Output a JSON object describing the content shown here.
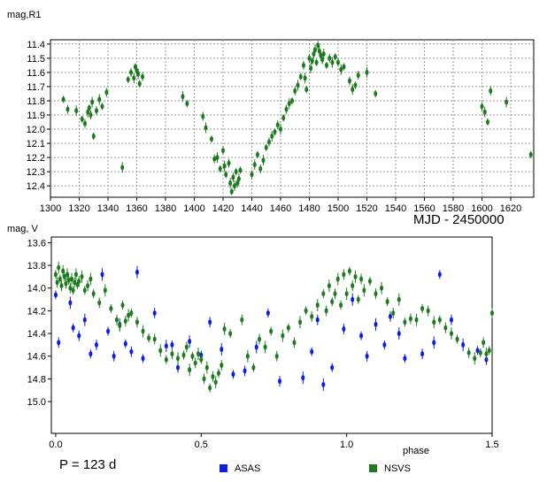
{
  "chart_data": [
    {
      "type": "scatter",
      "ylabel": "mag,R1",
      "xlabel": "MJD - 2450000",
      "x_ticks": [
        1300,
        1320,
        1340,
        1360,
        1380,
        1400,
        1420,
        1440,
        1460,
        1480,
        1500,
        1520,
        1540,
        1560,
        1580,
        1600,
        1620
      ],
      "y_ticks": [
        11.4,
        11.5,
        11.6,
        11.7,
        11.8,
        11.9,
        12.0,
        12.1,
        12.2,
        12.3,
        12.4
      ],
      "xlim": [
        1300,
        1636
      ],
      "ylim": [
        11.37,
        12.48
      ],
      "y_inverted": true,
      "grid": true,
      "series": [
        {
          "name": "NSVS",
          "color": "#1e7a1e",
          "points": [
            [
              1309,
              11.79
            ],
            [
              1312,
              11.86
            ],
            [
              1318,
              11.87
            ],
            [
              1322,
              11.93
            ],
            [
              1324,
              11.96
            ],
            [
              1326,
              11.88
            ],
            [
              1327,
              11.85
            ],
            [
              1328,
              11.9
            ],
            [
              1329,
              11.81
            ],
            [
              1330,
              12.05
            ],
            [
              1332,
              11.87
            ],
            [
              1334,
              11.79
            ],
            [
              1336,
              11.84
            ],
            [
              1339,
              11.74
            ],
            [
              1350,
              12.27
            ],
            [
              1354,
              11.65
            ],
            [
              1356,
              11.6
            ],
            [
              1358,
              11.64
            ],
            [
              1359,
              11.56
            ],
            [
              1360,
              11.59
            ],
            [
              1361,
              11.61
            ],
            [
              1362,
              11.68
            ],
            [
              1364,
              11.63
            ],
            [
              1392,
              11.77
            ],
            [
              1395,
              11.82
            ],
            [
              1406,
              11.91
            ],
            [
              1408,
              11.99
            ],
            [
              1412,
              12.07
            ],
            [
              1414,
              12.21
            ],
            [
              1416,
              12.2
            ],
            [
              1418,
              12.28
            ],
            [
              1420,
              12.15
            ],
            [
              1421,
              12.26
            ],
            [
              1422,
              12.32
            ],
            [
              1424,
              12.24
            ],
            [
              1425,
              12.38
            ],
            [
              1426,
              12.44
            ],
            [
              1427,
              12.34
            ],
            [
              1428,
              12.4
            ],
            [
              1429,
              12.3
            ],
            [
              1430,
              12.38
            ],
            [
              1431,
              12.35
            ],
            [
              1432,
              12.29
            ],
            [
              1440,
              12.32
            ],
            [
              1442,
              12.25
            ],
            [
              1444,
              12.18
            ],
            [
              1446,
              12.28
            ],
            [
              1448,
              12.22
            ],
            [
              1450,
              12.13
            ],
            [
              1452,
              12.09
            ],
            [
              1454,
              12.05
            ],
            [
              1456,
              12.02
            ],
            [
              1458,
              11.97
            ],
            [
              1460,
              12.0
            ],
            [
              1462,
              11.92
            ],
            [
              1464,
              11.86
            ],
            [
              1466,
              11.82
            ],
            [
              1468,
              11.8
            ],
            [
              1470,
              11.73
            ],
            [
              1472,
              11.69
            ],
            [
              1474,
              11.63
            ],
            [
              1476,
              11.55
            ],
            [
              1477,
              11.64
            ],
            [
              1478,
              11.72
            ],
            [
              1480,
              11.5
            ],
            [
              1481,
              11.57
            ],
            [
              1482,
              11.52
            ],
            [
              1483,
              11.47
            ],
            [
              1484,
              11.44
            ],
            [
              1485,
              11.53
            ],
            [
              1486,
              11.41
            ],
            [
              1487,
              11.45
            ],
            [
              1488,
              11.48
            ],
            [
              1489,
              11.51
            ],
            [
              1490,
              11.47
            ],
            [
              1492,
              11.55
            ],
            [
              1494,
              11.5
            ],
            [
              1496,
              11.53
            ],
            [
              1498,
              11.49
            ],
            [
              1500,
              11.53
            ],
            [
              1502,
              11.58
            ],
            [
              1504,
              11.56
            ],
            [
              1508,
              11.66
            ],
            [
              1510,
              11.72
            ],
            [
              1512,
              11.69
            ],
            [
              1514,
              11.62
            ],
            [
              1520,
              11.6
            ],
            [
              1526,
              11.75
            ],
            [
              1600,
              11.84
            ],
            [
              1602,
              11.88
            ],
            [
              1604,
              11.95
            ],
            [
              1606,
              11.73
            ],
            [
              1617,
              11.81
            ],
            [
              1634,
              12.18
            ]
          ]
        }
      ]
    },
    {
      "type": "scatter",
      "ylabel": "mag, V",
      "xlabel": "phase",
      "x_tick_labels": [
        "0.0",
        "0.5",
        "1.0",
        "1.5"
      ],
      "x_ticks": [
        0.0,
        0.5,
        1.0,
        1.5
      ],
      "y_ticks": [
        13.6,
        13.8,
        14.0,
        14.2,
        14.4,
        14.6,
        14.8,
        15.0
      ],
      "xlim": [
        -0.015,
        1.5
      ],
      "ylim": [
        13.55,
        15.28
      ],
      "y_inverted": true,
      "grid": false,
      "annotation": "P = 123 d",
      "legend_position": "bottom",
      "series": [
        {
          "name": "ASAS",
          "color": "#0a1ee6",
          "points": [
            [
              0.0,
              14.06
            ],
            [
              0.01,
              14.48
            ],
            [
              0.05,
              14.13
            ],
            [
              0.06,
              14.35
            ],
            [
              0.08,
              14.42
            ],
            [
              0.1,
              14.28
            ],
            [
              0.12,
              14.58
            ],
            [
              0.14,
              14.5
            ],
            [
              0.16,
              13.88
            ],
            [
              0.18,
              14.38
            ],
            [
              0.2,
              14.6
            ],
            [
              0.22,
              14.32
            ],
            [
              0.24,
              14.49
            ],
            [
              0.26,
              14.56
            ],
            [
              0.28,
              13.86
            ],
            [
              0.3,
              14.62
            ],
            [
              0.34,
              14.22
            ],
            [
              0.38,
              14.51
            ],
            [
              0.4,
              14.5
            ],
            [
              0.42,
              14.7
            ],
            [
              0.46,
              14.47
            ],
            [
              0.5,
              14.59
            ],
            [
              0.53,
              14.3
            ],
            [
              0.57,
              14.54
            ],
            [
              0.61,
              14.76
            ],
            [
              0.65,
              14.73
            ],
            [
              0.69,
              14.52
            ],
            [
              0.73,
              14.22
            ],
            [
              0.77,
              14.82
            ],
            [
              0.85,
              14.79
            ],
            [
              0.88,
              14.56
            ],
            [
              0.9,
              14.28
            ],
            [
              0.92,
              14.85
            ],
            [
              0.95,
              14.7
            ],
            [
              0.99,
              14.36
            ],
            [
              1.02,
              14.1
            ],
            [
              1.05,
              14.42
            ],
            [
              1.07,
              14.6
            ],
            [
              1.1,
              14.32
            ],
            [
              1.13,
              14.5
            ],
            [
              1.15,
              14.25
            ],
            [
              1.18,
              14.4
            ],
            [
              1.2,
              14.62
            ],
            [
              1.26,
              14.58
            ],
            [
              1.3,
              14.48
            ],
            [
              1.32,
              13.88
            ],
            [
              1.36,
              14.28
            ],
            [
              1.4,
              14.5
            ],
            [
              1.45,
              14.55
            ],
            [
              1.48,
              14.63
            ]
          ]
        },
        {
          "name": "NSVS",
          "color": "#1e7a1e",
          "points": [
            [
              0.0,
              13.88
            ],
            [
              0.005,
              13.95
            ],
            [
              0.01,
              13.82
            ],
            [
              0.015,
              13.92
            ],
            [
              0.02,
              13.98
            ],
            [
              0.025,
              13.85
            ],
            [
              0.03,
              13.9
            ],
            [
              0.035,
              13.96
            ],
            [
              0.04,
              13.88
            ],
            [
              0.045,
              13.93
            ],
            [
              0.05,
              14.0
            ],
            [
              0.055,
              13.92
            ],
            [
              0.06,
              14.02
            ],
            [
              0.065,
              13.95
            ],
            [
              0.07,
              13.88
            ],
            [
              0.075,
              13.97
            ],
            [
              0.08,
              13.94
            ],
            [
              0.09,
              13.9
            ],
            [
              0.1,
              14.02
            ],
            [
              0.11,
              13.98
            ],
            [
              0.12,
              13.92
            ],
            [
              0.13,
              14.05
            ],
            [
              0.15,
              14.13
            ],
            [
              0.17,
              14.02
            ],
            [
              0.19,
              14.18
            ],
            [
              0.21,
              14.28
            ],
            [
              0.22,
              14.33
            ],
            [
              0.23,
              14.15
            ],
            [
              0.24,
              14.29
            ],
            [
              0.25,
              14.24
            ],
            [
              0.26,
              14.22
            ],
            [
              0.28,
              14.3
            ],
            [
              0.3,
              14.38
            ],
            [
              0.32,
              14.44
            ],
            [
              0.34,
              14.45
            ],
            [
              0.36,
              14.55
            ],
            [
              0.38,
              14.63
            ],
            [
              0.4,
              14.58
            ],
            [
              0.42,
              14.62
            ],
            [
              0.44,
              14.59
            ],
            [
              0.45,
              14.52
            ],
            [
              0.46,
              14.72
            ],
            [
              0.47,
              14.6
            ],
            [
              0.48,
              14.66
            ],
            [
              0.49,
              14.58
            ],
            [
              0.5,
              14.63
            ],
            [
              0.51,
              14.8
            ],
            [
              0.52,
              14.7
            ],
            [
              0.53,
              14.88
            ],
            [
              0.54,
              14.78
            ],
            [
              0.55,
              14.83
            ],
            [
              0.56,
              14.75
            ],
            [
              0.57,
              14.68
            ],
            [
              0.58,
              14.36
            ],
            [
              0.6,
              14.4
            ],
            [
              0.64,
              14.28
            ],
            [
              0.66,
              14.6
            ],
            [
              0.68,
              14.7
            ],
            [
              0.7,
              14.45
            ],
            [
              0.72,
              14.52
            ],
            [
              0.74,
              14.38
            ],
            [
              0.76,
              14.6
            ],
            [
              0.78,
              14.42
            ],
            [
              0.8,
              14.35
            ],
            [
              0.82,
              14.48
            ],
            [
              0.84,
              14.3
            ],
            [
              0.86,
              14.2
            ],
            [
              0.88,
              14.25
            ],
            [
              0.9,
              14.15
            ],
            [
              0.92,
              14.05
            ],
            [
              0.93,
              14.2
            ],
            [
              0.94,
              13.98
            ],
            [
              0.95,
              14.12
            ],
            [
              0.96,
              14.05
            ],
            [
              0.97,
              13.92
            ],
            [
              0.98,
              14.15
            ],
            [
              0.99,
              13.88
            ],
            [
              1.0,
              14.05
            ],
            [
              1.01,
              13.85
            ],
            [
              1.02,
              13.98
            ],
            [
              1.03,
              13.9
            ],
            [
              1.04,
              14.1
            ],
            [
              1.05,
              13.92
            ],
            [
              1.06,
              14.02
            ],
            [
              1.08,
              13.94
            ],
            [
              1.1,
              14.05
            ],
            [
              1.12,
              14.0
            ],
            [
              1.14,
              14.12
            ],
            [
              1.16,
              14.22
            ],
            [
              1.18,
              14.1
            ],
            [
              1.2,
              14.3
            ],
            [
              1.22,
              14.27
            ],
            [
              1.24,
              14.28
            ],
            [
              1.26,
              14.18
            ],
            [
              1.28,
              14.2
            ],
            [
              1.3,
              14.3
            ],
            [
              1.32,
              14.28
            ],
            [
              1.34,
              14.35
            ],
            [
              1.36,
              14.4
            ],
            [
              1.38,
              14.45
            ],
            [
              1.42,
              14.57
            ],
            [
              1.44,
              14.62
            ],
            [
              1.46,
              14.57
            ],
            [
              1.47,
              14.48
            ],
            [
              1.48,
              14.58
            ],
            [
              1.49,
              14.55
            ],
            [
              1.5,
              14.22
            ]
          ]
        }
      ]
    }
  ]
}
